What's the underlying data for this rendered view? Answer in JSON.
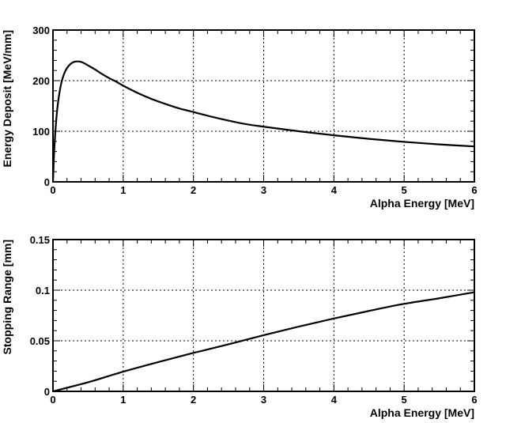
{
  "chart_data": [
    {
      "type": "line",
      "xlabel": "Alpha Energy [MeV]",
      "ylabel": "Energy Deposit [MeV/mm]",
      "xlim": [
        0,
        6
      ],
      "ylim": [
        0,
        300
      ],
      "x_ticks": [
        "0",
        "1",
        "2",
        "3",
        "4",
        "5",
        "6"
      ],
      "y_ticks": [
        "0",
        "100",
        "200",
        "300"
      ],
      "grid": true,
      "series": [
        {
          "x": [
            0,
            0.02,
            0.05,
            0.08,
            0.12,
            0.16,
            0.2,
            0.25,
            0.3,
            0.35,
            0.4,
            0.45,
            0.5,
            0.6,
            0.7,
            0.8,
            0.9,
            1.0,
            1.2,
            1.4,
            1.6,
            1.8,
            2.0,
            2.25,
            2.5,
            2.75,
            3.0,
            3.5,
            4.0,
            4.5,
            5.0,
            5.5,
            6.0
          ],
          "y": [
            0,
            68,
            128,
            165,
            196,
            214,
            225,
            233,
            237,
            238,
            237,
            234,
            230,
            222,
            213,
            205,
            198,
            190,
            176,
            164,
            154,
            145,
            138,
            129,
            121,
            114,
            109,
            100,
            92,
            85,
            79,
            74,
            70
          ]
        }
      ]
    },
    {
      "type": "line",
      "xlabel": "Alpha Energy [MeV]",
      "ylabel": "Stopping Range [mm]",
      "xlim": [
        0,
        6
      ],
      "ylim": [
        0,
        0.15
      ],
      "x_ticks": [
        "0",
        "1",
        "2",
        "3",
        "4",
        "5",
        "6"
      ],
      "y_ticks": [
        "0",
        "0.05",
        "0.1",
        "0.15"
      ],
      "grid": true,
      "series": [
        {
          "x": [
            0,
            0.5,
            1.0,
            1.5,
            2.0,
            2.5,
            3.0,
            3.5,
            4.0,
            4.5,
            5.0,
            5.5,
            6.0
          ],
          "y": [
            0,
            0.009,
            0.0195,
            0.029,
            0.038,
            0.0465,
            0.0555,
            0.064,
            0.072,
            0.0795,
            0.0865,
            0.092,
            0.098
          ]
        }
      ]
    }
  ]
}
